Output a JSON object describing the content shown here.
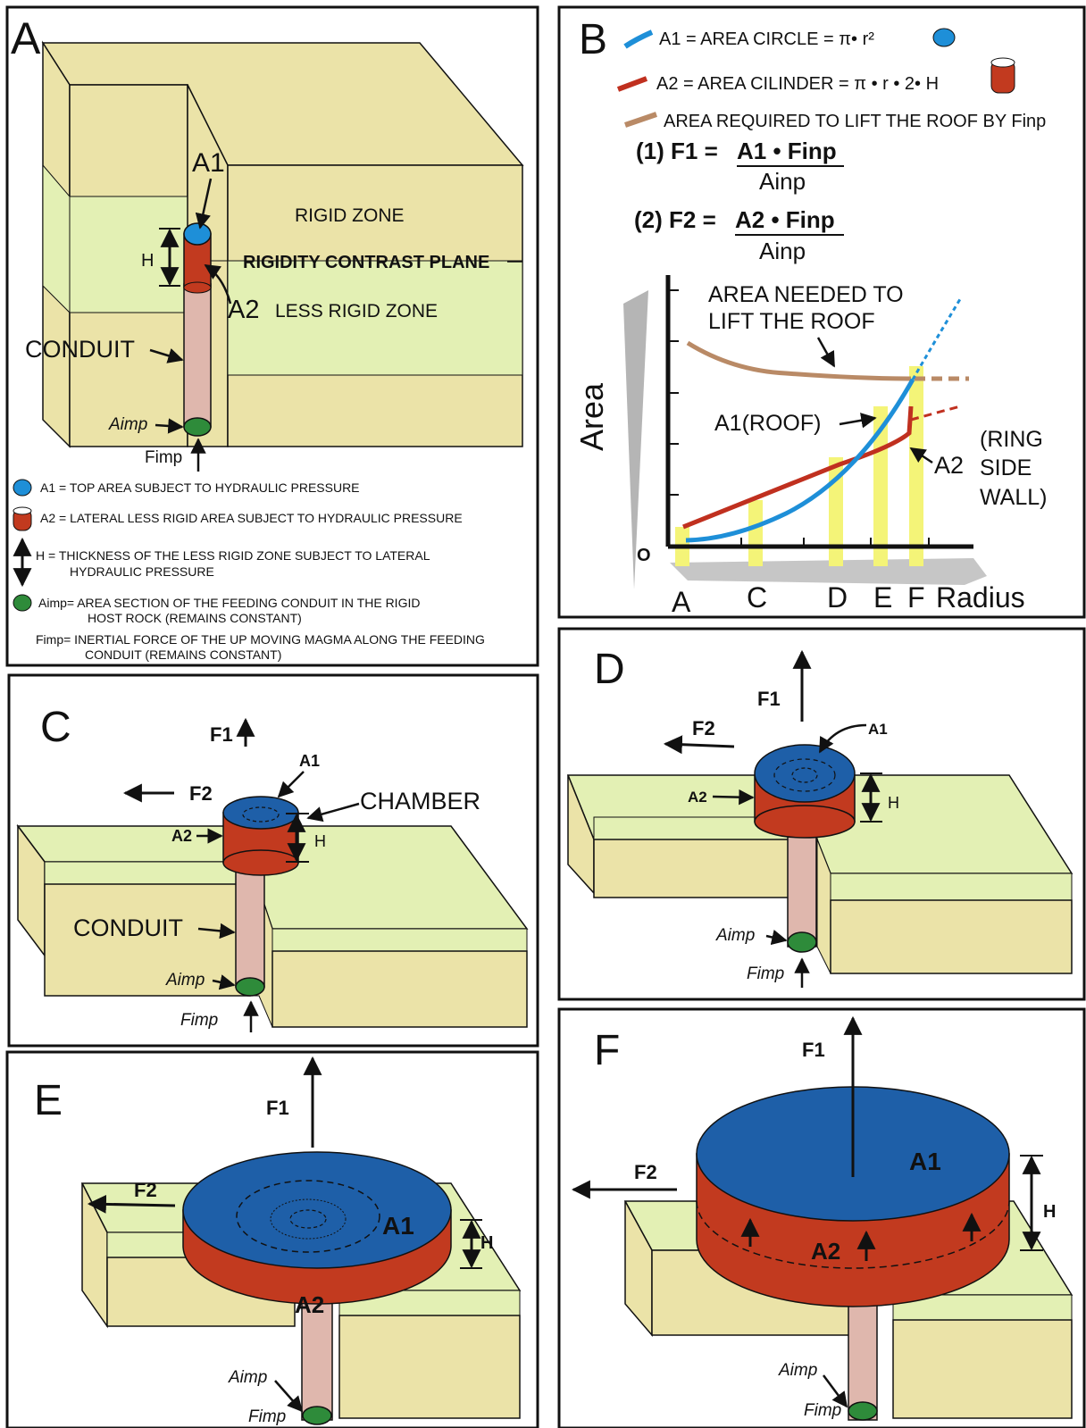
{
  "colors": {
    "rigid": "#ebe3a8",
    "less_rigid": "#e3f0b4",
    "conduit": "#dfb7ad",
    "top_area": "#1e5fa8",
    "lateral_area": "#c23a1f",
    "feed": "#2e8b3a",
    "a1_curve": "#1e8fd8",
    "a2_curve": "#c0301f",
    "roof_curve": "#b98a66",
    "highlight": "#f4f478"
  },
  "panel_a": {
    "letter": "A",
    "rigid_zone": "RIGID ZONE",
    "contrast_plane": "RIGIDITY CONTRAST PLANE",
    "less_rigid_zone": "LESS RIGID ZONE",
    "conduit": "CONDUIT",
    "a1": "A1",
    "a2": "A2",
    "h": "H",
    "aimp": "Aimp",
    "fimp": "Fimp",
    "legend": {
      "a1": "A1 = TOP AREA SUBJECT TO HYDRAULIC PRESSURE",
      "a2": "A2 = LATERAL LESS RIGID AREA SUBJECT TO HYDRAULIC PRESSURE",
      "h_1": "H = THICKNESS OF THE LESS RIGID ZONE SUBJECT TO LATERAL",
      "h_2": "HYDRAULIC PRESSURE",
      "aimp_1": "Aimp= AREA SECTION OF THE FEEDING CONDUIT IN THE RIGID",
      "aimp_2": "HOST ROCK (REMAINS CONSTANT)",
      "fimp_1": "Fimp= INERTIAL FORCE OF THE UP MOVING MAGMA ALONG THE FEEDING",
      "fimp_2": "CONDUIT  (REMAINS CONSTANT)"
    }
  },
  "panel_b": {
    "letter": "B",
    "legend_a1": "A1 = AREA CIRCLE = π• r²",
    "legend_a2": "A2 = AREA CILINDER = π • r • 2• H",
    "legend_roof": "AREA REQUIRED TO LIFT THE ROOF BY Finp",
    "eq1_lhs": "(1) F1 =",
    "eq1_num": "A1 • Finp",
    "eq1_den": "Ainp",
    "eq2_lhs": "(2) F2 =",
    "eq2_num": "A2 • Finp",
    "eq2_den": "Ainp",
    "graph": {
      "ylabel": "Area",
      "xlabel": "Radius",
      "origin": "O",
      "roof_label_1": "AREA NEEDED TO",
      "roof_label_2": "LIFT THE ROOF",
      "a1_label": "A1(ROOF)",
      "a2_label": "A2",
      "ring_label_1": "(RING",
      "ring_label_2": "SIDE",
      "ring_label_3": "WALL)",
      "stages": [
        "A",
        "C",
        "D",
        "E",
        "F"
      ]
    }
  },
  "panel_c": {
    "letter": "C",
    "f1": "F1",
    "f2": "F2",
    "a1": "A1",
    "a2": "A2",
    "h": "H",
    "chamber": "CHAMBER",
    "conduit": "CONDUIT",
    "aimp": "Aimp",
    "fimp": "Fimp"
  },
  "panel_d": {
    "letter": "D",
    "f1": "F1",
    "f2": "F2",
    "a1": "A1",
    "a2": "A2",
    "h": "H",
    "aimp": "Aimp",
    "fimp": "Fimp"
  },
  "panel_e": {
    "letter": "E",
    "f1": "F1",
    "f2": "F2",
    "a1": "A1",
    "a2": "A2",
    "h": "H",
    "aimp": "Aimp",
    "fimp": "Fimp"
  },
  "panel_f": {
    "letter": "F",
    "f1": "F1",
    "f2": "F2",
    "a1": "A1",
    "a2": "A2",
    "h": "H",
    "aimp": "Aimp",
    "fimp": "Fimp"
  }
}
